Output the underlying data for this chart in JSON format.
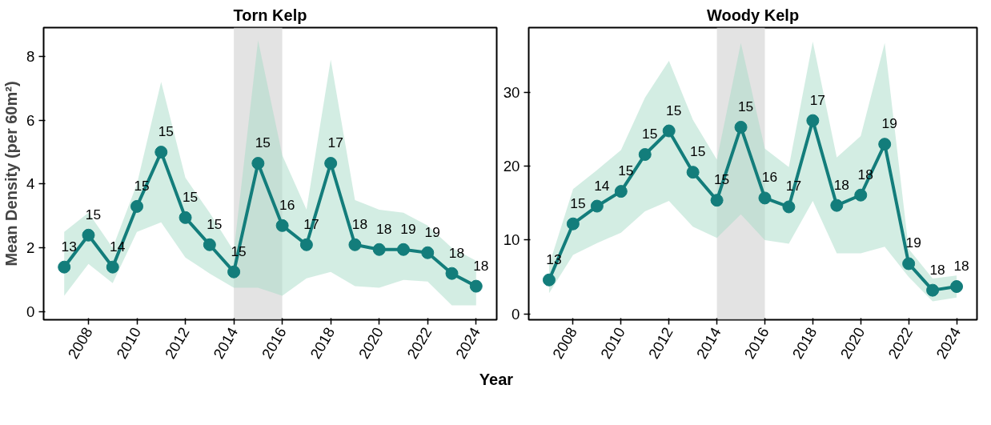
{
  "chart_data": [
    {
      "type": "line",
      "title": "Torn Kelp",
      "xlabel": "Year",
      "ylabel": "Mean Density (per 60m²)",
      "x": [
        2007,
        2008,
        2009,
        2010,
        2011,
        2012,
        2013,
        2014,
        2015,
        2016,
        2017,
        2018,
        2019,
        2020,
        2021,
        2022,
        2023,
        2024
      ],
      "series": [
        {
          "color": "#137d7b",
          "values": [
            1.4,
            2.4,
            1.4,
            3.3,
            5.0,
            2.95,
            2.1,
            1.25,
            4.65,
            2.7,
            2.1,
            4.65,
            2.1,
            1.95,
            1.95,
            1.85,
            1.2,
            0.8
          ],
          "lower": [
            0.5,
            1.5,
            0.9,
            2.5,
            2.8,
            1.7,
            1.2,
            0.75,
            0.75,
            0.5,
            1.05,
            1.25,
            0.8,
            0.75,
            1.0,
            0.95,
            0.2,
            0.2
          ],
          "upper": [
            2.5,
            3.1,
            2.0,
            4.0,
            7.2,
            4.2,
            3.1,
            1.9,
            8.5,
            4.9,
            3.2,
            7.9,
            3.5,
            3.2,
            3.1,
            2.7,
            2.0,
            1.6
          ]
        }
      ],
      "annotations": [
        {
          "text": "13",
          "x": 2007,
          "y": 1.4
        },
        {
          "text": "15",
          "x": 2008,
          "y": 2.4
        },
        {
          "text": "14",
          "x": 2009,
          "y": 1.4
        },
        {
          "text": "15",
          "x": 2010,
          "y": 3.3
        },
        {
          "text": "15",
          "x": 2011,
          "y": 5.0
        },
        {
          "text": "15",
          "x": 2012,
          "y": 2.95
        },
        {
          "text": "15",
          "x": 2013,
          "y": 2.1
        },
        {
          "text": "15",
          "x": 2014,
          "y": 1.25
        },
        {
          "text": "15",
          "x": 2015,
          "y": 4.65
        },
        {
          "text": "16",
          "x": 2016,
          "y": 2.7
        },
        {
          "text": "17",
          "x": 2017,
          "y": 2.1
        },
        {
          "text": "17",
          "x": 2018,
          "y": 4.65
        },
        {
          "text": "18",
          "x": 2019,
          "y": 2.1
        },
        {
          "text": "18",
          "x": 2020,
          "y": 1.95
        },
        {
          "text": "19",
          "x": 2021,
          "y": 1.95
        },
        {
          "text": "19",
          "x": 2022,
          "y": 1.85
        },
        {
          "text": "18",
          "x": 2023,
          "y": 1.2
        },
        {
          "text": "18",
          "x": 2024,
          "y": 0.8
        }
      ],
      "bands": [
        {
          "axis": "x",
          "from": 2014,
          "to": 2016,
          "color": "#d9d9d9"
        }
      ],
      "xlim": [
        2006.15,
        2024.85
      ],
      "ylim": [
        -0.25,
        8.9
      ],
      "xticks": [
        2008,
        2010,
        2012,
        2014,
        2016,
        2018,
        2020,
        2022,
        2024
      ],
      "yticks": [
        0,
        2,
        4,
        6,
        8
      ],
      "marker": "circle",
      "grid": false
    },
    {
      "type": "line",
      "title": "Woody Kelp",
      "x": [
        2007,
        2008,
        2009,
        2010,
        2011,
        2012,
        2013,
        2014,
        2015,
        2016,
        2017,
        2018,
        2019,
        2020,
        2021,
        2022,
        2023,
        2024
      ],
      "series": [
        {
          "color": "#137d7b",
          "values": [
            4.6,
            12.2,
            14.6,
            16.6,
            21.6,
            24.8,
            19.2,
            15.4,
            25.3,
            15.7,
            14.5,
            26.2,
            14.7,
            16.1,
            23.0,
            6.8,
            3.2,
            3.7
          ],
          "lower": [
            2.8,
            8.0,
            9.6,
            11.0,
            13.9,
            15.3,
            11.8,
            10.3,
            13.5,
            10.0,
            9.5,
            15.3,
            8.2,
            8.2,
            9.1,
            5.0,
            1.7,
            2.2
          ],
          "upper": [
            6.6,
            16.9,
            19.5,
            22.2,
            29.3,
            34.3,
            26.3,
            20.9,
            36.7,
            22.4,
            19.9,
            36.9,
            21.2,
            24.1,
            36.7,
            8.8,
            4.8,
            5.2
          ]
        }
      ],
      "annotations": [
        {
          "text": "13",
          "x": 2007,
          "y": 4.6
        },
        {
          "text": "15",
          "x": 2008,
          "y": 12.2
        },
        {
          "text": "14",
          "x": 2009,
          "y": 14.6
        },
        {
          "text": "15",
          "x": 2010,
          "y": 16.6
        },
        {
          "text": "15",
          "x": 2011,
          "y": 21.6
        },
        {
          "text": "15",
          "x": 2012,
          "y": 24.8
        },
        {
          "text": "15",
          "x": 2013,
          "y": 19.2
        },
        {
          "text": "15",
          "x": 2014,
          "y": 15.4
        },
        {
          "text": "15",
          "x": 2015,
          "y": 25.3
        },
        {
          "text": "16",
          "x": 2016,
          "y": 15.7
        },
        {
          "text": "17",
          "x": 2017,
          "y": 14.5
        },
        {
          "text": "17",
          "x": 2018,
          "y": 26.2
        },
        {
          "text": "18",
          "x": 2019,
          "y": 14.7
        },
        {
          "text": "18",
          "x": 2020,
          "y": 16.1
        },
        {
          "text": "19",
          "x": 2021,
          "y": 23.0
        },
        {
          "text": "19",
          "x": 2022,
          "y": 6.8
        },
        {
          "text": "18",
          "x": 2023,
          "y": 3.2
        },
        {
          "text": "18",
          "x": 2024,
          "y": 3.7
        }
      ],
      "bands": [
        {
          "axis": "x",
          "from": 2014,
          "to": 2016,
          "color": "#d9d9d9"
        }
      ],
      "xlim": [
        2006.15,
        2024.85
      ],
      "ylim": [
        -0.8,
        38.8
      ],
      "xticks": [
        2008,
        2010,
        2012,
        2014,
        2016,
        2018,
        2020,
        2022,
        2024
      ],
      "yticks": [
        0,
        10,
        20,
        30
      ],
      "marker": "circle",
      "grid": false
    }
  ]
}
